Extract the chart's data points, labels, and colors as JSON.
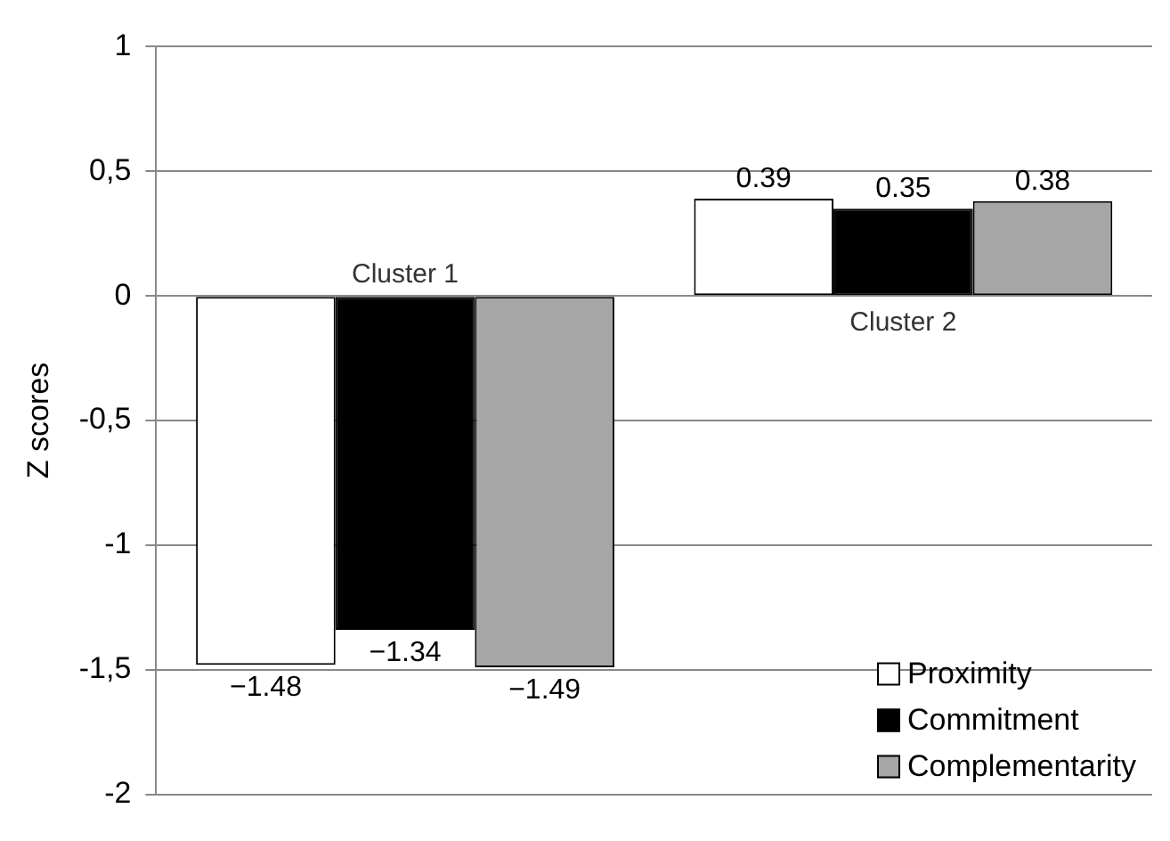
{
  "chart_data": {
    "type": "bar",
    "ylabel": "Z scores",
    "categories": [
      "Cluster 1",
      "Cluster 2"
    ],
    "series": [
      {
        "name": "Proximity",
        "color": "#ffffff",
        "values": [
          -1.48,
          0.39
        ],
        "value_labels": [
          "−1.48",
          "0.39"
        ]
      },
      {
        "name": "Commitment",
        "color": "#000000",
        "values": [
          -1.34,
          0.35
        ],
        "value_labels": [
          "−1.34",
          "0.35"
        ]
      },
      {
        "name": "Complementarity",
        "color": "#a6a6a6",
        "values": [
          -1.49,
          0.38
        ],
        "value_labels": [
          "−1.49",
          "0.38"
        ]
      }
    ],
    "ylim": [
      -2,
      1
    ],
    "yticks": [
      {
        "value": -2,
        "label": "-2"
      },
      {
        "value": -1.5,
        "label": "-1,5"
      },
      {
        "value": -1,
        "label": "-1"
      },
      {
        "value": -0.5,
        "label": "-0,5"
      },
      {
        "value": 0,
        "label": "0"
      },
      {
        "value": 0.5,
        "label": "0,5"
      },
      {
        "value": 1,
        "label": "1"
      }
    ],
    "grid": "y",
    "legend": "bottom right",
    "tick_labels": "y"
  }
}
